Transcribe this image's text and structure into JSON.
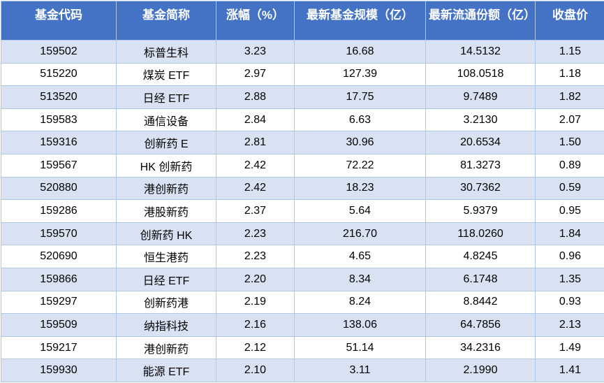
{
  "chart_data": {
    "type": "table",
    "columns": [
      "基金代码",
      "基金简称",
      "涨幅（%）",
      "最新基金规模（亿）",
      "最新流通份额（亿）",
      "收盘价"
    ],
    "rows": [
      [
        "159502",
        "标普生科",
        "3.23",
        "16.68",
        "14.5132",
        "1.15"
      ],
      [
        "515220",
        "煤炭 ETF",
        "2.97",
        "127.39",
        "108.0518",
        "1.18"
      ],
      [
        "513520",
        "日经 ETF",
        "2.88",
        "17.75",
        "9.7489",
        "1.82"
      ],
      [
        "159583",
        "通信设备",
        "2.84",
        "6.63",
        "3.2130",
        "2.07"
      ],
      [
        "159316",
        "创新药 E",
        "2.81",
        "30.96",
        "20.6534",
        "1.50"
      ],
      [
        "159567",
        "HK 创新药",
        "2.42",
        "72.22",
        "81.3273",
        "0.89"
      ],
      [
        "520880",
        "港创新药",
        "2.42",
        "18.23",
        "30.7362",
        "0.59"
      ],
      [
        "159286",
        "港股新药",
        "2.37",
        "5.64",
        "5.9379",
        "0.95"
      ],
      [
        "159570",
        "创新药 HK",
        "2.23",
        "216.70",
        "118.0260",
        "1.84"
      ],
      [
        "520690",
        "恒生港药",
        "2.23",
        "4.65",
        "4.8245",
        "0.96"
      ],
      [
        "159866",
        "日经 ETF",
        "2.20",
        "8.34",
        "6.1748",
        "1.35"
      ],
      [
        "159297",
        "创新药港",
        "2.19",
        "8.24",
        "8.8442",
        "0.93"
      ],
      [
        "159509",
        "纳指科技",
        "2.16",
        "138.06",
        "64.7856",
        "2.13"
      ],
      [
        "159217",
        "港创新药",
        "2.12",
        "51.14",
        "34.2316",
        "1.49"
      ],
      [
        "159930",
        "能源 ETF",
        "2.10",
        "3.11",
        "2.1990",
        "1.41"
      ]
    ]
  },
  "colors": {
    "header_bg": "#4472C4",
    "header_text": "#FFFFFF",
    "row_band_bg": "#D9E2F3",
    "row_plain_bg": "#FFFFFF",
    "grid_border": "#AFC8E8",
    "body_text": "#000000"
  }
}
